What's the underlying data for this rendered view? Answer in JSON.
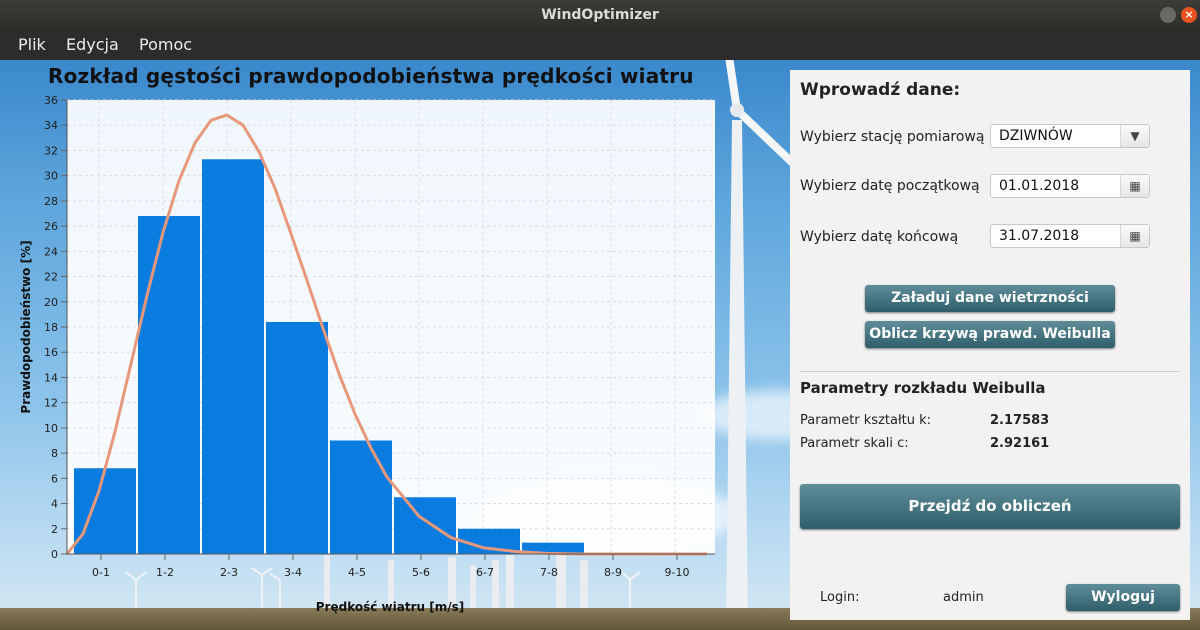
{
  "window": {
    "title": "WindOptimizer",
    "close_glyph": "×"
  },
  "menu": [
    {
      "label": "Plik"
    },
    {
      "label": "Edycja"
    },
    {
      "label": "Pomoc"
    }
  ],
  "chart_data": {
    "type": "bar",
    "title": "Rozkład gęstości prawdopodobieństwa prędkości wiatru",
    "xlabel": "Prędkość wiatru [m/s]",
    "ylabel": "Prawdopodobieństwo [%]",
    "categories": [
      "0-1",
      "1-2",
      "2-3",
      "3-4",
      "4-5",
      "5-6",
      "6-7",
      "7-8",
      "8-9",
      "9-10"
    ],
    "values": [
      6.8,
      26.8,
      31.3,
      18.4,
      9.0,
      4.5,
      2.0,
      0.9,
      0,
      0
    ],
    "ylim": [
      0,
      36
    ],
    "yticks": [
      0,
      2,
      4,
      6,
      8,
      10,
      12,
      14,
      16,
      18,
      20,
      22,
      24,
      26,
      28,
      30,
      32,
      34,
      36
    ],
    "grid": true,
    "bar_color": "#0a7ce0",
    "curve": {
      "type": "weibull",
      "k": 2.17583,
      "c": 2.92161,
      "color": "#e8987a",
      "x": [
        0,
        0.25,
        0.5,
        0.75,
        1,
        1.25,
        1.5,
        1.75,
        2,
        2.25,
        2.5,
        2.75,
        3,
        3.25,
        3.5,
        3.75,
        4,
        4.25,
        4.5,
        4.75,
        5,
        5.5,
        6,
        6.5,
        7,
        7.5,
        8,
        8.5,
        9,
        9.5,
        10
      ],
      "y": [
        0,
        1.6,
        5.0,
        9.7,
        15.1,
        20.5,
        25.5,
        29.6,
        32.6,
        34.4,
        34.8,
        34.0,
        31.9,
        29.0,
        25.4,
        21.7,
        17.9,
        14.3,
        11.1,
        8.4,
        6.1,
        3.0,
        1.3,
        0.5,
        0.2,
        0.05,
        0,
        0,
        0,
        0,
        0
      ]
    }
  },
  "panel": {
    "heading": "Wprowadź dane:",
    "station_label": "Wybierz stację pomiarową",
    "station_value": "DZIWNÓW",
    "start_label": "Wybierz datę początkową",
    "start_value": "01.01.2018",
    "end_label": "Wybierz datę końcową",
    "end_value": "31.07.2018",
    "load_button": "Załaduj dane wietrzności",
    "weibull_button": "Oblicz krzywą prawd. Weibulla",
    "params_heading": "Parametry rozkładu Weibulla",
    "k_label": "Parametr kształtu k:",
    "k_value": "2.17583",
    "c_label": "Parametr skali c:",
    "c_value": "2.92161",
    "calc_button": "Przejdź do obliczeń",
    "login_label": "Login:",
    "login_value": "admin",
    "logout_button": "Wyloguj"
  },
  "icons": {
    "dropdown": "chevron-down-icon",
    "calendar": "calendar-icon"
  },
  "colors": {
    "accent_button": "#3f6f7b",
    "titlebar": "#35342f",
    "menubar": "#2c2c2c"
  }
}
